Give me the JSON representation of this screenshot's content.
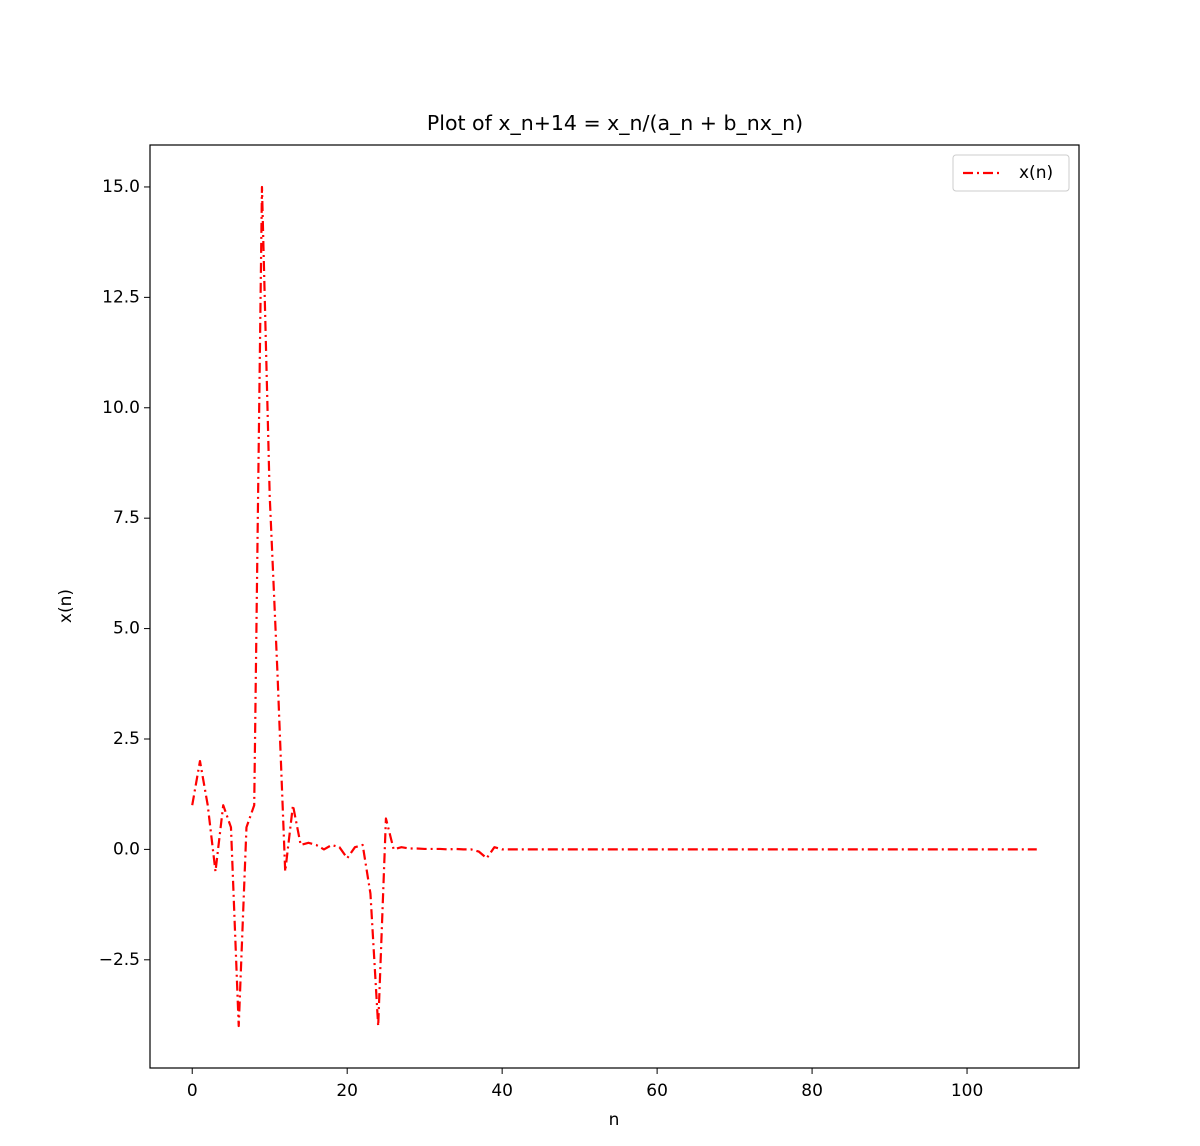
{
  "chart_data": {
    "type": "line",
    "title": "Plot of x_n+14 = x_n/(a_n + b_nx_n)",
    "xlabel": "n",
    "ylabel": "x(n)",
    "x": [
      0,
      1,
      2,
      3,
      4,
      5,
      6,
      7,
      8,
      9,
      10,
      11,
      12,
      13,
      14,
      15,
      16,
      17,
      18,
      19,
      20,
      21,
      22,
      23,
      24,
      25,
      26,
      27,
      28,
      29,
      30,
      31,
      32,
      33,
      34,
      35,
      36,
      37,
      38,
      39,
      40,
      41,
      42,
      43,
      44,
      45,
      46,
      47,
      48,
      49,
      50,
      51,
      52,
      53,
      54,
      55,
      56,
      57,
      58,
      59,
      60,
      61,
      62,
      63,
      64,
      65,
      66,
      67,
      68,
      69,
      70,
      71,
      72,
      73,
      74,
      75,
      76,
      77,
      78,
      79,
      80,
      81,
      82,
      83,
      84,
      85,
      86,
      87,
      88,
      89,
      90,
      91,
      92,
      93,
      94,
      95,
      96,
      97,
      98,
      99,
      100,
      101,
      102,
      103,
      104,
      105,
      106,
      107,
      108,
      109
    ],
    "series": [
      {
        "name": "x(n)",
        "color": "#ff0000",
        "values": [
          1,
          2,
          1,
          -0.5,
          1,
          0.5,
          -4,
          0.5,
          1,
          15,
          8,
          4,
          -0.5,
          1,
          0.1,
          0.15,
          0.1,
          0,
          0.1,
          0.05,
          -0.2,
          0.05,
          0.1,
          -1,
          -4,
          0.7,
          0,
          0.05,
          0.02,
          0.02,
          0.01,
          0.01,
          0.01,
          0,
          0.01,
          0,
          0,
          -0.05,
          -0.2,
          0.05,
          0,
          0,
          0,
          0,
          0,
          0,
          0,
          0,
          0,
          0,
          0,
          0,
          0,
          0,
          0,
          0,
          0,
          0,
          0,
          0,
          0,
          0,
          0,
          0,
          0,
          0,
          0,
          0,
          0,
          0,
          0,
          0,
          0,
          0,
          0,
          0,
          0,
          0,
          0,
          0,
          0,
          0,
          0,
          0,
          0,
          0,
          0,
          0,
          0,
          0,
          0,
          0,
          0,
          0,
          0,
          0,
          0,
          0,
          0,
          0,
          0,
          0,
          0,
          0,
          0,
          0,
          0,
          0,
          0,
          0
        ]
      }
    ],
    "xlim": [
      -5.45,
      114.45
    ],
    "xticks": [
      0,
      20,
      40,
      60,
      80,
      100
    ],
    "ylim": [
      -4.95,
      15.95
    ],
    "yticks": [
      {
        "value": -2.5,
        "label": "−2.5"
      },
      {
        "value": 0,
        "label": "0.0"
      },
      {
        "value": 2.5,
        "label": "2.5"
      },
      {
        "value": 5,
        "label": "5.0"
      },
      {
        "value": 7.5,
        "label": "7.5"
      },
      {
        "value": 10,
        "label": "10.0"
      },
      {
        "value": 12.5,
        "label": "12.5"
      },
      {
        "value": 15,
        "label": "15.0"
      }
    ],
    "legend": "upper right",
    "line_style": "dashdot"
  }
}
